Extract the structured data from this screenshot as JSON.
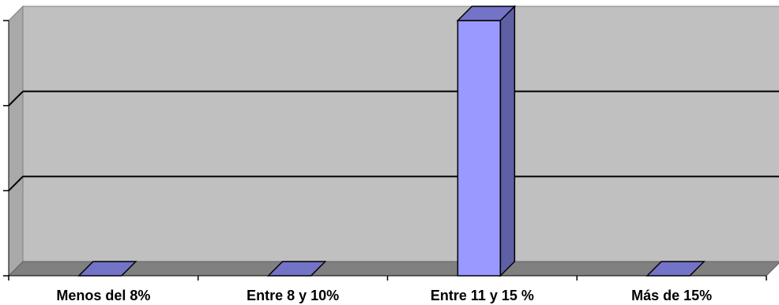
{
  "chart_data": {
    "type": "bar",
    "categories": [
      "Menos del 8%",
      "Entre 8 y 10%",
      "Entre 11 y 15 %",
      "Más de 15%"
    ],
    "values": [
      0,
      0,
      100,
      0
    ],
    "ylim": [
      0,
      100
    ],
    "grid": true,
    "three_d": true,
    "colors": {
      "bar_front": "#9999ff",
      "bar_side": "#5f5fa6",
      "bar_top": "#7373c8",
      "wall": "#c0c0c0",
      "side_wall": "#a9a9a9",
      "floor": "#808080",
      "gridline": "#000000"
    }
  }
}
